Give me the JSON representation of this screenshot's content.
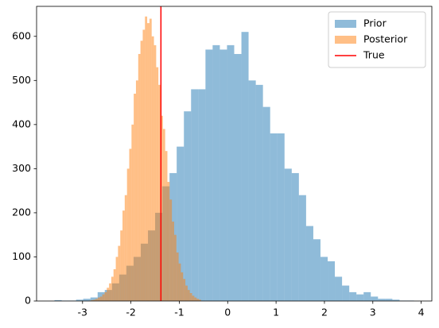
{
  "chart_data": {
    "type": "histogram",
    "series": [
      {
        "name": "Prior",
        "color": "#1f77b4",
        "alpha": 0.5,
        "bins": [
          -3.58,
          -3.431,
          -3.283,
          -3.134,
          -2.986,
          -2.837,
          -2.688,
          -2.54,
          -2.391,
          -2.243,
          -2.094,
          -1.945,
          -1.797,
          -1.648,
          -1.5,
          -1.351,
          -1.202,
          -1.054,
          -0.905,
          -0.757,
          -0.608,
          -0.459,
          -0.311,
          -0.162,
          -0.014,
          0.135,
          0.284,
          0.432,
          0.581,
          0.729,
          0.878,
          1.027,
          1.175,
          1.324,
          1.472,
          1.621,
          1.77,
          1.918,
          2.067,
          2.215,
          2.364,
          2.513,
          2.661,
          2.81,
          2.958,
          3.107,
          3.256,
          3.404,
          3.553,
          3.701,
          3.85
        ],
        "values": [
          2,
          1,
          1,
          3,
          5,
          8,
          20,
          25,
          40,
          60,
          80,
          100,
          130,
          160,
          200,
          260,
          290,
          350,
          430,
          480,
          480,
          570,
          580,
          570,
          580,
          560,
          610,
          500,
          490,
          440,
          380,
          380,
          300,
          290,
          240,
          170,
          140,
          100,
          90,
          55,
          35,
          20,
          15,
          20,
          10,
          5,
          5,
          3,
          1,
          1
        ]
      },
      {
        "name": "Posterior",
        "color": "#ff7f0e",
        "alpha": 0.5,
        "bins": [
          -2.87,
          -2.824,
          -2.777,
          -2.731,
          -2.684,
          -2.638,
          -2.592,
          -2.545,
          -2.499,
          -2.452,
          -2.406,
          -2.36,
          -2.313,
          -2.267,
          -2.22,
          -2.174,
          -2.128,
          -2.081,
          -2.035,
          -1.988,
          -1.942,
          -1.896,
          -1.849,
          -1.803,
          -1.756,
          -1.71,
          -1.664,
          -1.617,
          -1.571,
          -1.524,
          -1.478,
          -1.432,
          -1.385,
          -1.339,
          -1.292,
          -1.246,
          -1.2,
          -1.153,
          -1.107,
          -1.06,
          -1.014,
          -0.968,
          -0.921,
          -0.875,
          -0.828,
          -0.782,
          -0.736,
          -0.689,
          -0.643,
          -0.596,
          -0.55
        ],
        "values": [
          1,
          2,
          3,
          5,
          8,
          10,
          15,
          20,
          30,
          40,
          55,
          72,
          100,
          125,
          160,
          205,
          240,
          300,
          345,
          400,
          470,
          500,
          560,
          590,
          615,
          645,
          630,
          640,
          600,
          580,
          530,
          490,
          420,
          390,
          340,
          270,
          230,
          180,
          150,
          110,
          85,
          65,
          50,
          35,
          25,
          18,
          12,
          8,
          5,
          3
        ]
      }
    ],
    "vlines": [
      {
        "name": "True",
        "color": "red",
        "x": -1.38
      }
    ],
    "xlim": [
      -3.95,
      4.22
    ],
    "xticks": [
      -3,
      -2,
      -1,
      0,
      1,
      2,
      3,
      4
    ],
    "ylim": [
      0,
      668
    ],
    "yticks": [
      0,
      100,
      200,
      300,
      400,
      500,
      600
    ],
    "legend": "upper right"
  }
}
